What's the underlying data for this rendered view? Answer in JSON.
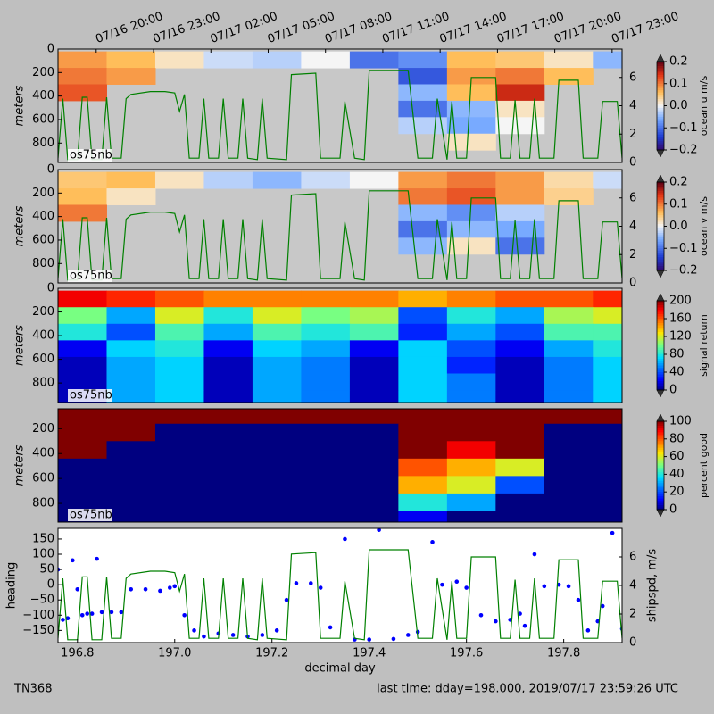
{
  "chart_data": [
    {
      "type": "heatmap",
      "colormap": "velocity",
      "ylabel": "meters",
      "label": "os75nb",
      "colorbar_label": "ocean u m/s",
      "xlim": [
        196.76,
        197.92
      ],
      "ylim": [
        965,
        0
      ],
      "yticks": [
        0,
        200,
        400,
        600,
        800
      ],
      "x2lim": [
        196.75,
        197.98
      ],
      "x2ticks": [
        {
          "value": 196.8333,
          "label": "07/16 20:00"
        },
        {
          "value": 196.9583,
          "label": "07/16 23:00"
        },
        {
          "value": 197.0833,
          "label": "07/17 02:00"
        },
        {
          "value": 197.2083,
          "label": "07/17 05:00"
        },
        {
          "value": 197.3333,
          "label": "07/17 08:00"
        },
        {
          "value": 197.4583,
          "label": "07/17 11:00"
        },
        {
          "value": 197.5833,
          "label": "07/17 14:00"
        },
        {
          "value": 197.7083,
          "label": "07/17 17:00"
        },
        {
          "value": 197.8333,
          "label": "07/17 20:00"
        },
        {
          "value": 197.9583,
          "label": "07/17 23:00"
        }
      ],
      "y2lim": [
        0,
        8
      ],
      "y2ticks": [
        0,
        2,
        4,
        6
      ],
      "clim": [
        -0.2,
        0.2
      ],
      "cticks": [
        0.2,
        0.1,
        {
          "value": 0,
          "label": "0.0"
        },
        {
          "value": -0.1,
          "label": "−0.1"
        },
        {
          "value": -0.2,
          "label": "−0.2"
        }
      ],
      "xedges": [
        196.76,
        196.86,
        196.96,
        197.06,
        197.16,
        197.26,
        197.36,
        197.46,
        197.56,
        197.66,
        197.76,
        197.86,
        197.92
      ],
      "yedges": [
        20,
        160,
        300,
        440,
        580,
        720,
        860,
        965
      ],
      "values": [
        [
          0.08,
          0.06,
          0.02,
          -0.02,
          -0.03,
          0,
          -0.1,
          -0.08,
          0.06,
          0.05,
          0.02,
          -0.05
        ],
        [
          0.1,
          0.08,
          null,
          null,
          null,
          null,
          null,
          -0.12,
          0.08,
          0.1,
          0.06,
          null
        ],
        [
          0.12,
          null,
          null,
          null,
          null,
          null,
          null,
          -0.05,
          0.06,
          0.15,
          null,
          null
        ],
        [
          null,
          null,
          null,
          null,
          null,
          null,
          null,
          -0.1,
          -0.05,
          0.02,
          null,
          null
        ],
        [
          null,
          null,
          null,
          null,
          null,
          null,
          null,
          -0.03,
          -0.06,
          0,
          null,
          null
        ],
        [
          null,
          null,
          null,
          null,
          null,
          null,
          null,
          null,
          0.02,
          null,
          null,
          null
        ],
        [
          null,
          null,
          null,
          null,
          null,
          null,
          null,
          null,
          null,
          null,
          null,
          null
        ]
      ]
    },
    {
      "type": "heatmap",
      "colormap": "velocity",
      "ylabel": "meters",
      "label": "os75nb",
      "colorbar_label": "ocean v m/s",
      "xlim": [
        196.76,
        197.92
      ],
      "ylim": [
        965,
        0
      ],
      "yticks": [
        0,
        200,
        400,
        600,
        800
      ],
      "y2lim": [
        0,
        8
      ],
      "y2ticks": [
        0,
        2,
        4,
        6
      ],
      "clim": [
        -0.2,
        0.2
      ],
      "cticks": [
        0.2,
        0.1,
        {
          "value": 0,
          "label": "0.0"
        },
        {
          "value": -0.1,
          "label": "−0.1"
        },
        {
          "value": -0.2,
          "label": "−0.2"
        }
      ],
      "xedges": [
        196.76,
        196.86,
        196.96,
        197.06,
        197.16,
        197.26,
        197.36,
        197.46,
        197.56,
        197.66,
        197.76,
        197.86,
        197.92
      ],
      "yedges": [
        20,
        160,
        300,
        440,
        580,
        720,
        860,
        965
      ],
      "values": [
        [
          0.05,
          0.06,
          0.02,
          -0.03,
          -0.05,
          -0.02,
          0,
          0.08,
          0.1,
          0.08,
          0.03,
          -0.02
        ],
        [
          0.06,
          0.02,
          null,
          null,
          null,
          null,
          null,
          0.1,
          0.12,
          0.08,
          0.04,
          null
        ],
        [
          0.1,
          null,
          null,
          null,
          null,
          null,
          null,
          -0.05,
          -0.08,
          -0.03,
          null,
          null
        ],
        [
          null,
          null,
          null,
          null,
          null,
          null,
          null,
          -0.1,
          -0.05,
          -0.06,
          null,
          null
        ],
        [
          null,
          null,
          null,
          null,
          null,
          null,
          null,
          -0.05,
          0.02,
          -0.1,
          null,
          null
        ],
        [
          null,
          null,
          null,
          null,
          null,
          null,
          null,
          null,
          null,
          null,
          null,
          null
        ],
        [
          null,
          null,
          null,
          null,
          null,
          null,
          null,
          null,
          null,
          null,
          null,
          null
        ]
      ]
    },
    {
      "type": "heatmap",
      "colormap": "jet",
      "ylabel": "meters",
      "label": "os75nb",
      "colorbar_label": "signal return",
      "xlim": [
        196.76,
        197.92
      ],
      "ylim": [
        965,
        0
      ],
      "yticks": [
        0,
        200,
        400,
        600,
        800
      ],
      "clim": [
        0,
        200
      ],
      "cticks": [
        200,
        160,
        120,
        80,
        40,
        0
      ],
      "xedges": [
        196.76,
        196.86,
        196.96,
        197.06,
        197.16,
        197.26,
        197.36,
        197.46,
        197.56,
        197.66,
        197.76,
        197.86,
        197.92
      ],
      "yedges": [
        20,
        160,
        300,
        440,
        580,
        720,
        860,
        965
      ],
      "values": [
        [
          180,
          170,
          160,
          150,
          150,
          150,
          150,
          140,
          150,
          160,
          160,
          170
        ],
        [
          100,
          60,
          120,
          80,
          120,
          100,
          110,
          40,
          80,
          60,
          110,
          120
        ],
        [
          80,
          40,
          90,
          60,
          90,
          80,
          90,
          30,
          60,
          40,
          90,
          90
        ],
        [
          20,
          70,
          80,
          20,
          70,
          60,
          20,
          70,
          40,
          20,
          60,
          80
        ],
        [
          10,
          60,
          70,
          10,
          60,
          50,
          10,
          70,
          30,
          10,
          50,
          70
        ],
        [
          10,
          60,
          70,
          10,
          60,
          50,
          10,
          70,
          50,
          10,
          50,
          70
        ],
        [
          10,
          60,
          70,
          10,
          60,
          50,
          10,
          70,
          50,
          10,
          50,
          70
        ]
      ]
    },
    {
      "type": "heatmap",
      "colormap": "jet",
      "ylabel": "meters",
      "label": "os75nb",
      "colorbar_label": "percent good",
      "xlim": [
        196.76,
        197.92
      ],
      "ylim": [
        950,
        40
      ],
      "yticks": [
        200,
        400,
        600,
        800
      ],
      "clim": [
        0,
        100
      ],
      "cticks": [
        100,
        80,
        60,
        40,
        20,
        0
      ],
      "xedges": [
        196.76,
        196.86,
        196.96,
        197.06,
        197.16,
        197.26,
        197.36,
        197.46,
        197.56,
        197.66,
        197.76,
        197.86,
        197.92
      ],
      "yedges": [
        20,
        160,
        300,
        440,
        580,
        720,
        860,
        965
      ],
      "values": [
        [
          100,
          100,
          100,
          100,
          100,
          100,
          100,
          100,
          100,
          100,
          100,
          100
        ],
        [
          100,
          100,
          0,
          0,
          0,
          0,
          0,
          100,
          100,
          100,
          0,
          0
        ],
        [
          100,
          0,
          0,
          0,
          0,
          0,
          0,
          100,
          90,
          100,
          0,
          0
        ],
        [
          0,
          0,
          0,
          0,
          0,
          0,
          0,
          80,
          70,
          60,
          0,
          0
        ],
        [
          0,
          0,
          0,
          0,
          0,
          0,
          0,
          70,
          60,
          20,
          0,
          0
        ],
        [
          0,
          0,
          0,
          0,
          0,
          0,
          0,
          40,
          30,
          0,
          0,
          0
        ],
        [
          0,
          0,
          0,
          0,
          0,
          0,
          0,
          10,
          0,
          0,
          0,
          0
        ]
      ]
    },
    {
      "type": "scatter",
      "xlabel": "decimal day",
      "xlim": [
        196.76,
        197.92
      ],
      "ylim": [
        -190,
        185
      ],
      "xticks": [
        196.8,
        {
          "value": 197.0,
          "label": "197.0"
        },
        197.2,
        197.4,
        197.6,
        197.8
      ],
      "yticks": [
        150,
        100,
        50,
        0,
        {
          "value": -50,
          "label": "−50"
        },
        {
          "value": -100,
          "label": "−100"
        },
        {
          "value": -150,
          "label": "−150"
        }
      ],
      "y2lim": [
        0,
        8
      ],
      "y2ticks": [
        0,
        2,
        4,
        6
      ],
      "x": [
        196.76,
        196.77,
        196.78,
        196.79,
        196.8,
        196.81,
        196.82,
        196.83,
        196.84,
        196.85,
        196.87,
        196.89,
        196.91,
        196.94,
        196.97,
        196.99,
        197.0,
        197.02,
        197.04,
        197.06,
        197.09,
        197.12,
        197.15,
        197.18,
        197.21,
        197.23,
        197.25,
        197.28,
        197.3,
        197.32,
        197.35,
        197.37,
        197.4,
        197.42,
        197.45,
        197.48,
        197.5,
        197.53,
        197.55,
        197.58,
        197.6,
        197.63,
        197.66,
        197.69,
        197.71,
        197.72,
        197.74,
        197.76,
        197.79,
        197.81,
        197.83,
        197.85,
        197.87,
        197.88,
        197.9,
        197.92
      ],
      "series": [
        {
          "name": "heading",
          "color": "#0000ff",
          "values": [
            50,
            -115,
            -110,
            80,
            -15,
            -100,
            -95,
            -95,
            85,
            -90,
            -90,
            -90,
            -15,
            -15,
            -20,
            -10,
            -5,
            -100,
            -150,
            -170,
            -160,
            -165,
            -170,
            -165,
            -150,
            -50,
            5,
            5,
            -10,
            -140,
            150,
            -180,
            -180,
            180,
            -178,
            -165,
            -155,
            140,
            0,
            10,
            -10,
            -100,
            -120,
            -115,
            -95,
            -135,
            100,
            -5,
            0,
            -5,
            -50,
            -150,
            -120,
            -70,
            170,
            -145
          ]
        },
        {
          "name": "shipspd, m/s",
          "color": "#008000",
          "axis": "y2",
          "x": [
            196.76,
            196.77,
            196.78,
            196.8,
            196.81,
            196.82,
            196.83,
            196.85,
            196.86,
            196.87,
            196.89,
            196.9,
            196.91,
            196.95,
            196.98,
            197.0,
            197.01,
            197.02,
            197.03,
            197.05,
            197.06,
            197.07,
            197.09,
            197.1,
            197.11,
            197.13,
            197.14,
            197.15,
            197.17,
            197.18,
            197.19,
            197.23,
            197.24,
            197.29,
            197.3,
            197.34,
            197.35,
            197.37,
            197.39,
            197.4,
            197.48,
            197.5,
            197.53,
            197.54,
            197.56,
            197.57,
            197.58,
            197.6,
            197.61,
            197.66,
            197.67,
            197.69,
            197.7,
            197.71,
            197.73,
            197.74,
            197.75,
            197.78,
            197.79,
            197.83,
            197.84,
            197.87,
            197.88,
            197.91,
            197.92
          ],
          "values": [
            0.3,
            4.5,
            0.2,
            0.2,
            4.6,
            4.6,
            0.2,
            0.2,
            4.6,
            0.3,
            0.3,
            4.5,
            4.8,
            5.0,
            5.0,
            4.9,
            3.6,
            4.8,
            0.3,
            0.3,
            4.5,
            0.3,
            0.3,
            4.5,
            0.3,
            0.3,
            4.5,
            0.3,
            0.2,
            4.5,
            0.3,
            0.2,
            6.2,
            6.3,
            0.3,
            0.3,
            4.3,
            0.3,
            0.2,
            6.5,
            6.5,
            0.3,
            0.3,
            4.5,
            0.2,
            4.3,
            0.3,
            0.3,
            6.0,
            6.0,
            0.3,
            0.3,
            4.4,
            0.3,
            0.3,
            4.5,
            0.3,
            0.3,
            5.8,
            5.8,
            0.3,
            0.3,
            4.3,
            4.3,
            0.3
          ]
        }
      ]
    }
  ],
  "footer": {
    "cruise": "TN368",
    "last_time": "last time: dday=198.000,  2019/07/17 23:59:26 UTC"
  }
}
